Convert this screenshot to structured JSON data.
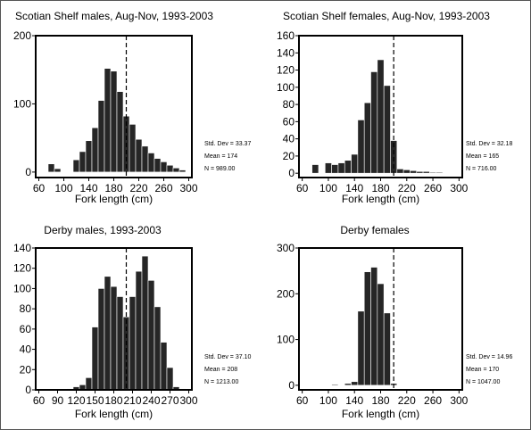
{
  "chart_data": [
    {
      "type": "bar",
      "title": "Scotian Shelf males, Aug-Nov, 1993-2003",
      "xlabel": "Fork length (cm)",
      "ylabel": "",
      "x": [
        70,
        80,
        90,
        100,
        110,
        120,
        130,
        140,
        150,
        160,
        170,
        180,
        190,
        200,
        210,
        220,
        230,
        240,
        250,
        260,
        270,
        280,
        290
      ],
      "values": [
        0,
        12,
        5,
        0,
        0,
        18,
        30,
        46,
        65,
        105,
        152,
        148,
        118,
        82,
        70,
        48,
        38,
        28,
        20,
        15,
        10,
        6,
        3
      ],
      "xlim": [
        55,
        305
      ],
      "ylim": [
        -8,
        200
      ],
      "xticks": [
        60,
        100,
        140,
        180,
        220,
        260,
        300
      ],
      "xtick_labels": [
        "60",
        "100",
        "140",
        "180",
        "220",
        "260",
        "300"
      ],
      "yticks": [
        0,
        100,
        200
      ],
      "ytick_labels": [
        "0",
        "100",
        "200"
      ],
      "reference_line": 200,
      "stats": [
        "Std. Dev = 33.37",
        "Mean = 174",
        "N = 989.00"
      ]
    },
    {
      "type": "bar",
      "title": "Scotian Shelf females, Aug-Nov, 1993-2003",
      "xlabel": "Fork length (cm)",
      "ylabel": "",
      "x": [
        70,
        80,
        90,
        100,
        110,
        120,
        130,
        140,
        150,
        160,
        170,
        180,
        190,
        200,
        210,
        220,
        230,
        240,
        250,
        260,
        270,
        280,
        290
      ],
      "values": [
        0,
        10,
        0,
        12,
        10,
        12,
        15,
        22,
        62,
        82,
        118,
        132,
        102,
        38,
        5,
        4,
        3,
        2,
        2,
        1,
        1,
        0,
        0
      ],
      "xlim": [
        55,
        305
      ],
      "ylim": [
        -5,
        160
      ],
      "xticks": [
        60,
        100,
        140,
        180,
        220,
        260,
        300
      ],
      "xtick_labels": [
        "60",
        "100",
        "140",
        "180",
        "220",
        "260",
        "300"
      ],
      "yticks": [
        0,
        20,
        40,
        60,
        80,
        100,
        120,
        140,
        160
      ],
      "ytick_labels": [
        "0",
        "20",
        "40",
        "60",
        "80",
        "100",
        "120",
        "140",
        "160"
      ],
      "reference_line": 200,
      "stats": [
        "Std. Dev = 32.18",
        "Mean = 165",
        "N = 716.00"
      ]
    },
    {
      "type": "bar",
      "title": "Derby males, 1993-2003",
      "xlabel": "Fork length (cm)",
      "ylabel": "",
      "x": [
        60,
        70,
        80,
        90,
        100,
        110,
        120,
        130,
        140,
        150,
        160,
        170,
        180,
        190,
        200,
        210,
        220,
        230,
        240,
        250,
        260,
        270,
        280,
        290,
        300
      ],
      "values": [
        0,
        0,
        0,
        0,
        0,
        1,
        3,
        5,
        12,
        62,
        100,
        112,
        102,
        92,
        72,
        92,
        117,
        132,
        108,
        82,
        47,
        22,
        3,
        1,
        0
      ],
      "xlim": [
        55,
        305
      ],
      "ylim": [
        0,
        140
      ],
      "xticks": [
        60,
        90,
        120,
        150,
        180,
        210,
        240,
        270,
        300
      ],
      "xtick_labels": [
        "60",
        "90",
        "120",
        "150",
        "180",
        "210",
        "240",
        "270",
        "300"
      ],
      "yticks": [
        0,
        20,
        40,
        60,
        80,
        100,
        120,
        140
      ],
      "ytick_labels": [
        "0",
        "20",
        "40",
        "60",
        "80",
        "100",
        "120",
        "140"
      ],
      "reference_line": 200,
      "stats": [
        "Std. Dev = 37.10",
        "Mean = 208",
        "N = 1213.00"
      ]
    },
    {
      "type": "bar",
      "title": "Derby females",
      "xlabel": "Fork length (cm)",
      "ylabel": "",
      "x": [
        70,
        80,
        90,
        100,
        110,
        120,
        130,
        140,
        150,
        160,
        170,
        180,
        190,
        200,
        210,
        220,
        230,
        240,
        250,
        260,
        270,
        280,
        290
      ],
      "values": [
        0,
        0,
        0,
        0,
        2,
        0,
        4,
        8,
        162,
        248,
        258,
        222,
        158,
        4,
        0,
        0,
        0,
        0,
        0,
        0,
        0,
        0,
        0
      ],
      "xlim": [
        55,
        305
      ],
      "ylim": [
        -10,
        300
      ],
      "xticks": [
        60,
        100,
        140,
        180,
        220,
        260,
        300
      ],
      "xtick_labels": [
        "60",
        "100",
        "140",
        "180",
        "220",
        "260",
        "300"
      ],
      "yticks": [
        0,
        100,
        200,
        300
      ],
      "ytick_labels": [
        "0",
        "100",
        "200",
        "300"
      ],
      "reference_line": 200,
      "stats": [
        "Std. Dev = 14.96",
        "Mean = 170",
        "N = 1047.00"
      ]
    }
  ],
  "colors": {
    "bar_fill": "#262626",
    "bar_stroke": "#ffffff",
    "axes": "#000000",
    "reference_line": "#000000"
  }
}
